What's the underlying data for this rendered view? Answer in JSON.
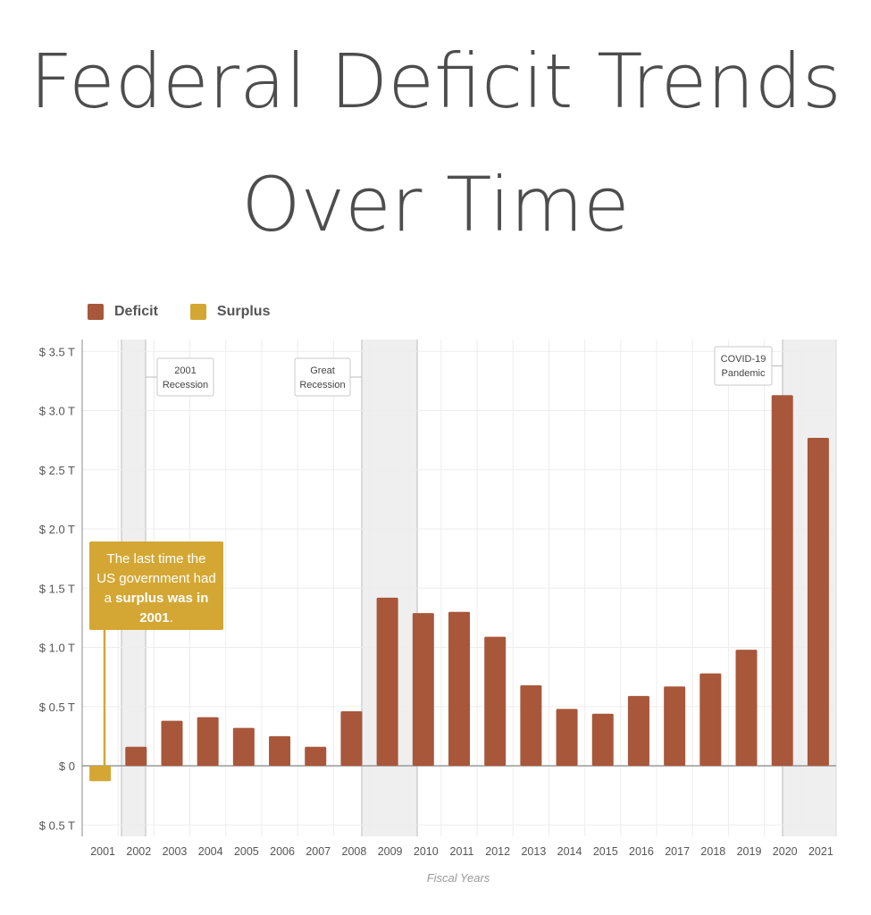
{
  "title_line1": "Federal Deficit Trends",
  "title_line2": "Over Time",
  "legend": [
    {
      "label": "Deficit",
      "color": "#a8573a"
    },
    {
      "label": "Surplus",
      "color": "#d4a734"
    }
  ],
  "callout": {
    "part1": "The last time the US government had a ",
    "bold": "surplus was in 2001",
    "part2": "."
  },
  "annotations": [
    {
      "label_line1": "2001",
      "label_line2": "Recession",
      "shade_from": "2001",
      "shade_to": "2002"
    },
    {
      "label_line1": "Great",
      "label_line2": "Recession",
      "shade_from": "2008",
      "shade_to": "2009"
    },
    {
      "label_line1": "COVID-19",
      "label_line2": "Pandemic",
      "shade_from": "2020",
      "shade_to": "2021"
    }
  ],
  "chart_data": {
    "type": "bar",
    "title": "Federal Deficit Trends Over Time",
    "xlabel": "Fiscal Years",
    "ylabel": "",
    "categories": [
      "2001",
      "2002",
      "2003",
      "2004",
      "2005",
      "2006",
      "2007",
      "2008",
      "2009",
      "2010",
      "2011",
      "2012",
      "2013",
      "2014",
      "2015",
      "2016",
      "2017",
      "2018",
      "2019",
      "2020",
      "2021"
    ],
    "series": [
      {
        "name": "Deficit",
        "color": "#a8573a",
        "values": [
          0,
          0.16,
          0.38,
          0.41,
          0.32,
          0.25,
          0.16,
          0.46,
          1.42,
          1.29,
          1.3,
          1.09,
          0.68,
          0.48,
          0.44,
          0.59,
          0.67,
          0.78,
          0.98,
          3.13,
          2.77
        ]
      },
      {
        "name": "Surplus",
        "color": "#d4a734",
        "values": [
          -0.13,
          0,
          0,
          0,
          0,
          0,
          0,
          0,
          0,
          0,
          0,
          0,
          0,
          0,
          0,
          0,
          0,
          0,
          0,
          0,
          0
        ]
      }
    ],
    "y_ticks": [
      {
        "value": 3.5,
        "label": "$ 3.5 T"
      },
      {
        "value": 3.0,
        "label": "$ 3.0 T"
      },
      {
        "value": 2.5,
        "label": "$ 2.5 T"
      },
      {
        "value": 2.0,
        "label": "$ 2.0 T"
      },
      {
        "value": 1.5,
        "label": "$ 1.5 T"
      },
      {
        "value": 1.0,
        "label": "$ 1.0 T"
      },
      {
        "value": 0.5,
        "label": "$ 0.5 T"
      },
      {
        "value": 0,
        "label": "$ 0"
      },
      {
        "value": -0.5,
        "label": "$ 0.5 T"
      }
    ],
    "ylim": [
      -0.6,
      3.5
    ],
    "grid": true,
    "legend_position": "top-left"
  }
}
